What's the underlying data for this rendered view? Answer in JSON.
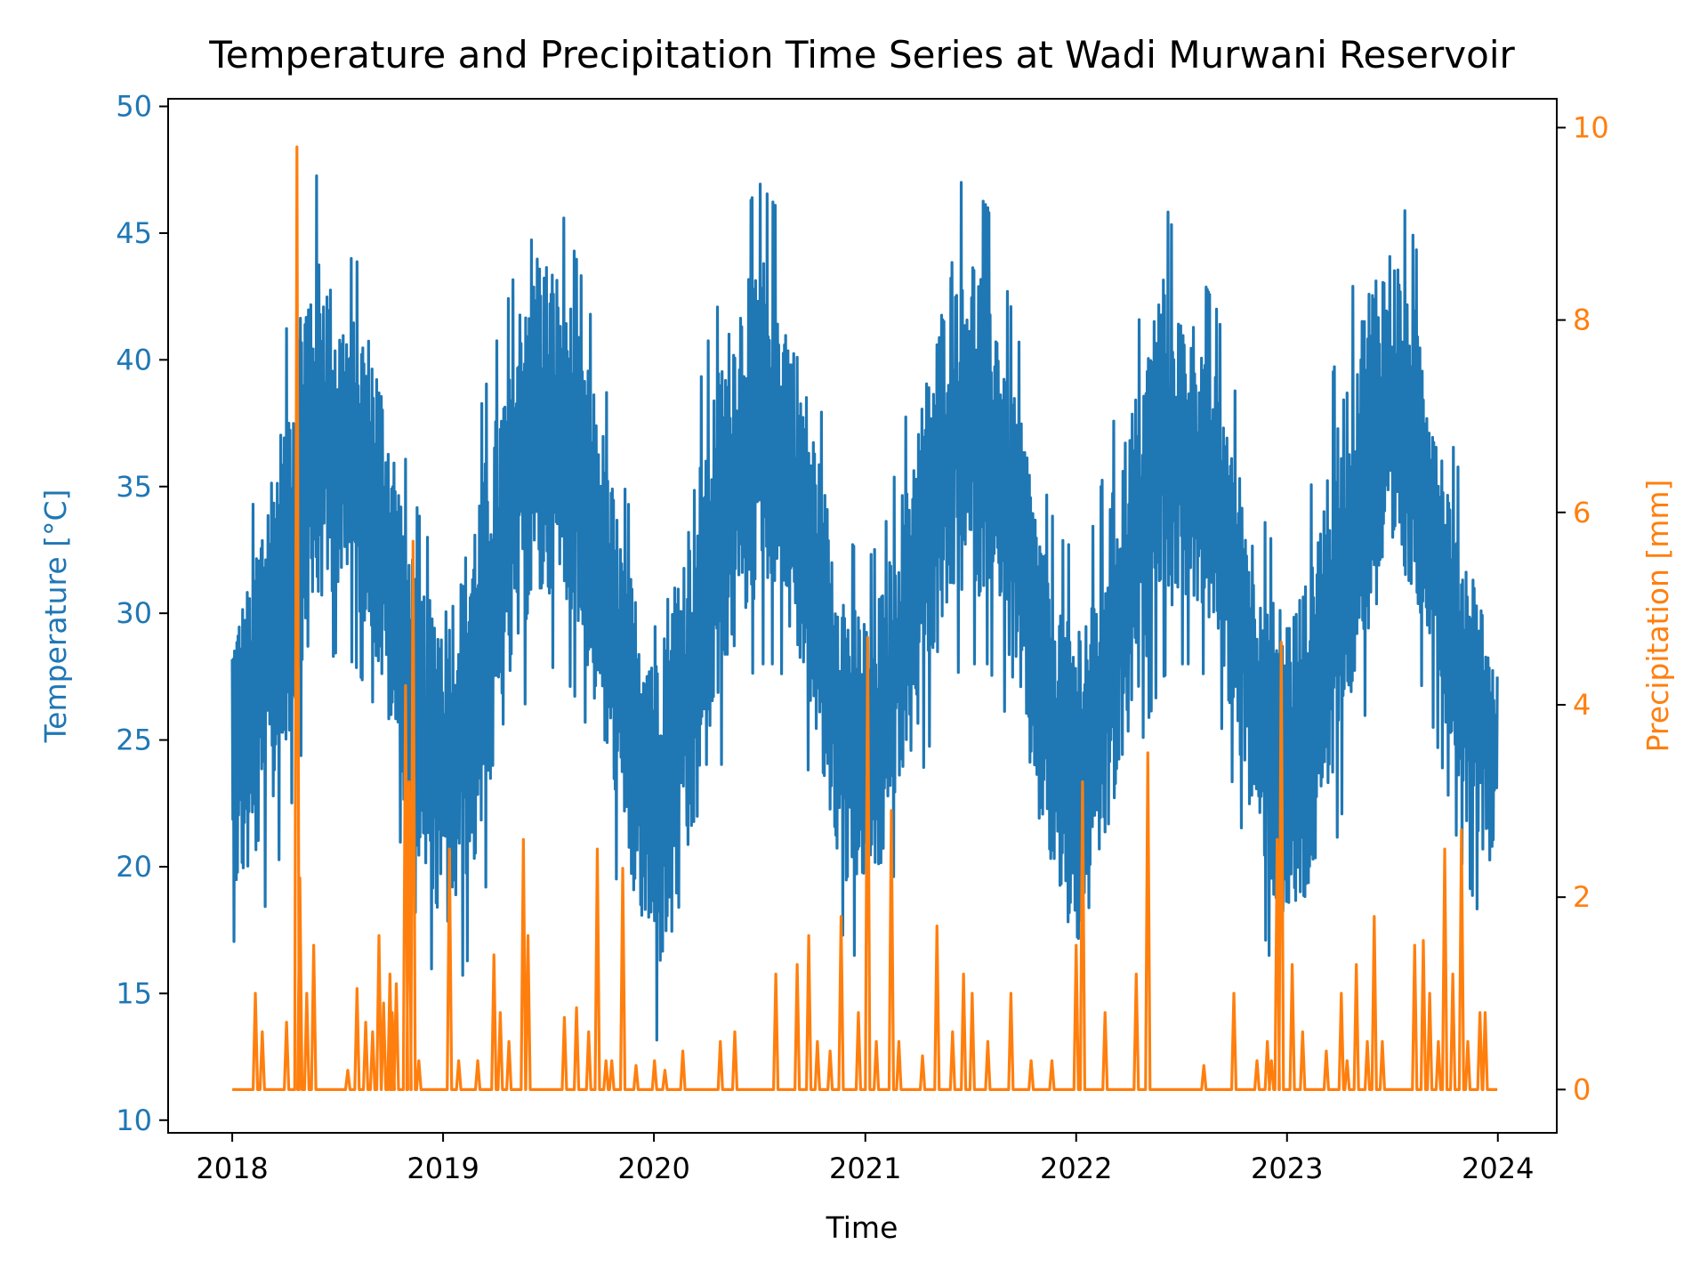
{
  "chart_data": {
    "type": "line",
    "title": "Temperature and Precipitation Time Series at Wadi Murwani Reservoir",
    "xlabel": "Time",
    "ylabel": "Temperature [°C]",
    "y2label": "Precipitation [mm]",
    "xlim": [
      "2017-09-12",
      "2024-04-12"
    ],
    "xticks": [
      "2018",
      "2019",
      "2020",
      "2021",
      "2022",
      "2023",
      "2024"
    ],
    "ylim": [
      9.5,
      50.3
    ],
    "yticks": [
      10,
      15,
      20,
      25,
      30,
      35,
      40,
      45,
      50
    ],
    "y2lim": [
      -0.45,
      10.3
    ],
    "y2ticks": [
      0,
      2,
      4,
      6,
      8,
      10
    ],
    "grid": false,
    "colors": {
      "temperature": "#1f77b4",
      "precipitation": "#ff7f0e"
    },
    "series": [
      {
        "axis": "left",
        "x": [
          "2018-01-01",
          "2018-02-01",
          "2018-03-01",
          "2018-04-01",
          "2018-05-01",
          "2018-06-01",
          "2018-07-01",
          "2018-08-01",
          "2018-09-01",
          "2018-10-01",
          "2018-11-01",
          "2018-12-01",
          "2019-01-01",
          "2019-02-01",
          "2019-03-01",
          "2019-04-01",
          "2019-05-01",
          "2019-06-01",
          "2019-07-01",
          "2019-08-01",
          "2019-09-01",
          "2019-10-01",
          "2019-11-01",
          "2019-12-01",
          "2020-01-01",
          "2020-02-01",
          "2020-03-01",
          "2020-04-01",
          "2020-05-01",
          "2020-06-01",
          "2020-07-01",
          "2020-08-01",
          "2020-09-01",
          "2020-10-01",
          "2020-11-01",
          "2020-12-01",
          "2021-01-01",
          "2021-02-01",
          "2021-03-01",
          "2021-04-01",
          "2021-05-01",
          "2021-06-01",
          "2021-07-01",
          "2021-08-01",
          "2021-09-01",
          "2021-10-01",
          "2021-11-01",
          "2021-12-01",
          "2022-01-01",
          "2022-02-01",
          "2022-03-01",
          "2022-04-01",
          "2022-05-01",
          "2022-06-01",
          "2022-07-01",
          "2022-08-01",
          "2022-09-01",
          "2022-10-01",
          "2022-11-01",
          "2022-12-01",
          "2023-01-01",
          "2023-02-01",
          "2023-03-01",
          "2023-04-01",
          "2023-05-01",
          "2023-06-01",
          "2023-07-01",
          "2023-08-01",
          "2023-09-01",
          "2023-10-01",
          "2023-11-01",
          "2023-12-01",
          "2023-12-31"
        ],
        "low": [
          17.0,
          17.5,
          18.5,
          21.0,
          24.5,
          27.5,
          28.5,
          28.0,
          26.5,
          23.0,
          19.5,
          16.5,
          15.0,
          15.5,
          17.5,
          21.0,
          25.0,
          27.0,
          28.0,
          27.5,
          26.0,
          23.0,
          19.0,
          16.0,
          13.0,
          14.0,
          17.0,
          21.0,
          24.5,
          27.0,
          28.0,
          28.0,
          26.5,
          23.0,
          19.5,
          16.5,
          16.5,
          18.0,
          20.5,
          23.0,
          25.5,
          27.5,
          28.0,
          28.0,
          26.0,
          23.0,
          19.0,
          16.5,
          14.0,
          16.5,
          19.0,
          22.5,
          25.5,
          27.5,
          28.0,
          28.0,
          26.5,
          23.0,
          19.5,
          16.5,
          15.0,
          16.0,
          18.0,
          21.5,
          25.0,
          27.0,
          28.5,
          28.5,
          26.5,
          23.5,
          20.0,
          18.0,
          22.0
        ],
        "high": [
          31.5,
          33.5,
          38.0,
          40.5,
          46.0,
          47.5,
          44.0,
          44.0,
          43.0,
          40.0,
          35.5,
          33.0,
          33.0,
          34.0,
          37.5,
          40.5,
          43.0,
          48.0,
          46.5,
          45.5,
          43.0,
          40.0,
          36.0,
          33.0,
          32.5,
          34.0,
          36.5,
          40.5,
          43.0,
          45.5,
          47.0,
          46.0,
          43.0,
          40.0,
          36.0,
          33.0,
          32.0,
          33.0,
          36.5,
          40.0,
          43.0,
          47.0,
          47.0,
          46.0,
          43.0,
          40.0,
          35.5,
          33.0,
          32.5,
          33.5,
          37.0,
          40.0,
          42.5,
          46.5,
          44.0,
          43.5,
          42.0,
          39.0,
          35.5,
          33.0,
          32.5,
          33.5,
          37.5,
          40.5,
          43.5,
          46.5,
          47.0,
          45.5,
          42.5,
          38.0,
          35.0,
          33.0,
          27.5
        ]
      },
      {
        "axis": "right",
        "peaks": [
          [
            "2018-02-10",
            1.0
          ],
          [
            "2018-02-22",
            0.6
          ],
          [
            "2018-04-05",
            0.7
          ],
          [
            "2018-04-23",
            9.8
          ],
          [
            "2018-04-28",
            2.2
          ],
          [
            "2018-05-10",
            1.0
          ],
          [
            "2018-05-22",
            1.5
          ],
          [
            "2018-07-20",
            0.2
          ],
          [
            "2018-08-05",
            1.05
          ],
          [
            "2018-08-20",
            0.7
          ],
          [
            "2018-09-01",
            0.6
          ],
          [
            "2018-09-12",
            1.6
          ],
          [
            "2018-09-20",
            0.9
          ],
          [
            "2018-10-01",
            1.2
          ],
          [
            "2018-10-05",
            0.8
          ],
          [
            "2018-10-12",
            1.1
          ],
          [
            "2018-10-28",
            4.2
          ],
          [
            "2018-11-03",
            3.2
          ],
          [
            "2018-11-10",
            5.7
          ],
          [
            "2018-11-20",
            0.3
          ],
          [
            "2019-01-12",
            2.5
          ],
          [
            "2019-01-28",
            0.3
          ],
          [
            "2019-03-02",
            0.3
          ],
          [
            "2019-03-30",
            1.4
          ],
          [
            "2019-04-10",
            0.8
          ],
          [
            "2019-04-25",
            0.5
          ],
          [
            "2019-05-20",
            2.6
          ],
          [
            "2019-05-28",
            1.6
          ],
          [
            "2019-07-30",
            0.75
          ],
          [
            "2019-08-20",
            0.85
          ],
          [
            "2019-09-10",
            0.6
          ],
          [
            "2019-09-25",
            2.5
          ],
          [
            "2019-10-10",
            0.3
          ],
          [
            "2019-10-20",
            0.3
          ],
          [
            "2019-11-08",
            2.3
          ],
          [
            "2019-12-01",
            0.25
          ],
          [
            "2020-01-02",
            0.3
          ],
          [
            "2020-01-20",
            0.2
          ],
          [
            "2020-02-20",
            0.4
          ],
          [
            "2020-04-25",
            0.5
          ],
          [
            "2020-05-20",
            0.6
          ],
          [
            "2020-07-30",
            1.2
          ],
          [
            "2020-09-05",
            1.3
          ],
          [
            "2020-09-25",
            1.6
          ],
          [
            "2020-10-10",
            0.5
          ],
          [
            "2020-11-01",
            0.4
          ],
          [
            "2020-11-20",
            1.8
          ],
          [
            "2020-12-20",
            0.8
          ],
          [
            "2021-01-05",
            4.7
          ],
          [
            "2021-01-20",
            0.5
          ],
          [
            "2021-02-15",
            2.9
          ],
          [
            "2021-02-28",
            0.5
          ],
          [
            "2021-04-10",
            0.35
          ],
          [
            "2021-05-05",
            1.7
          ],
          [
            "2021-06-01",
            0.6
          ],
          [
            "2021-06-20",
            1.2
          ],
          [
            "2021-07-05",
            1.0
          ],
          [
            "2021-08-01",
            0.5
          ],
          [
            "2021-09-10",
            1.0
          ],
          [
            "2021-10-15",
            0.3
          ],
          [
            "2021-11-20",
            0.3
          ],
          [
            "2022-01-01",
            1.5
          ],
          [
            "2022-01-12",
            3.2
          ],
          [
            "2022-02-20",
            0.8
          ],
          [
            "2022-04-15",
            1.2
          ],
          [
            "2022-05-05",
            3.5
          ],
          [
            "2022-08-10",
            0.25
          ],
          [
            "2022-10-01",
            1.0
          ],
          [
            "2022-11-10",
            0.3
          ],
          [
            "2022-11-28",
            0.5
          ],
          [
            "2022-12-05",
            0.3
          ],
          [
            "2022-12-15",
            2.6
          ],
          [
            "2022-12-22",
            4.65
          ],
          [
            "2023-01-10",
            1.3
          ],
          [
            "2023-01-28",
            0.6
          ],
          [
            "2023-03-10",
            0.4
          ],
          [
            "2023-04-05",
            1.0
          ],
          [
            "2023-04-15",
            0.3
          ],
          [
            "2023-05-01",
            1.3
          ],
          [
            "2023-05-20",
            0.5
          ],
          [
            "2023-06-01",
            1.8
          ],
          [
            "2023-06-15",
            0.5
          ],
          [
            "2023-08-10",
            1.5
          ],
          [
            "2023-08-25",
            1.55
          ],
          [
            "2023-09-05",
            1.0
          ],
          [
            "2023-09-20",
            0.5
          ],
          [
            "2023-10-01",
            2.5
          ],
          [
            "2023-10-15",
            1.2
          ],
          [
            "2023-10-30",
            2.7
          ],
          [
            "2023-11-10",
            0.5
          ],
          [
            "2023-12-01",
            0.8
          ],
          [
            "2023-12-10",
            0.8
          ]
        ]
      }
    ]
  }
}
